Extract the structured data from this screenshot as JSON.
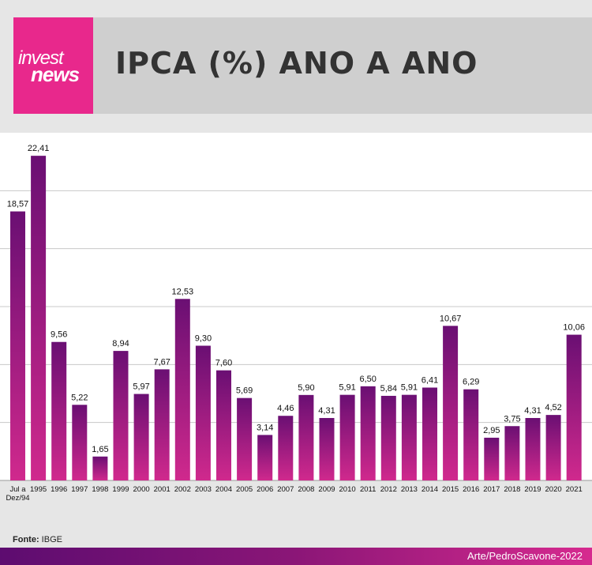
{
  "header": {
    "logo_line1": "invest",
    "logo_line2": "news",
    "title": "IPCA (%) ANO A ANO"
  },
  "footer": {
    "source_label": "Fonte:",
    "source_value": "IBGE",
    "credit": "Arte/PedroScavone-2022"
  },
  "colors": {
    "bar_top": "#6a0f73",
    "bar_bottom": "#d0298d",
    "accent": "#e8288c"
  },
  "chart_data": {
    "type": "bar",
    "title": "IPCA (%) ANO A ANO",
    "categories": [
      "Jul a Dez/94",
      "1995",
      "1996",
      "1997",
      "1998",
      "1999",
      "2000",
      "2001",
      "2002",
      "2003",
      "2004",
      "2005",
      "2006",
      "2007",
      "2008",
      "2009",
      "2010",
      "2011",
      "2012",
      "2013",
      "2014",
      "2015",
      "2016",
      "2017",
      "2018",
      "2019",
      "2020",
      "2021"
    ],
    "values": [
      18.57,
      22.41,
      9.56,
      5.22,
      1.65,
      8.94,
      5.97,
      7.67,
      12.53,
      9.3,
      7.6,
      5.69,
      3.14,
      4.46,
      5.9,
      4.31,
      5.91,
      6.5,
      5.84,
      5.91,
      6.41,
      10.67,
      6.29,
      2.95,
      3.75,
      4.31,
      4.52,
      10.06
    ],
    "value_labels": [
      "18,57",
      "22,41",
      "9,56",
      "5,22",
      "1,65",
      "8,94",
      "5,97",
      "7,67",
      "12,53",
      "9,30",
      "7,60",
      "5,69",
      "3,14",
      "4,46",
      "5,90",
      "4,31",
      "5,91",
      "6,50",
      "5,84",
      "5,91",
      "6,41",
      "10,67",
      "6,29",
      "2,95",
      "3,75",
      "4,31",
      "4,52",
      "10,06"
    ],
    "ylim": [
      0,
      24
    ],
    "grid": true,
    "xlabel": "",
    "ylabel": ""
  }
}
